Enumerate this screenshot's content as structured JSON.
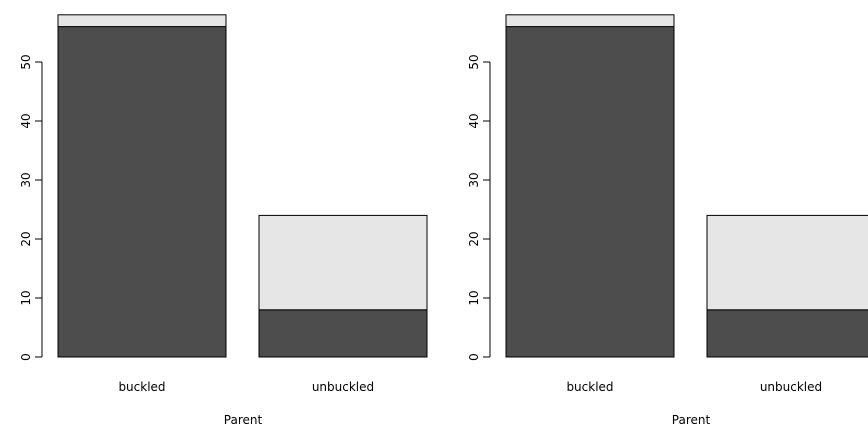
{
  "chart_data": [
    {
      "type": "bar",
      "stacked": true,
      "categories": [
        "buckled",
        "unbuckled"
      ],
      "series": [
        {
          "values": [
            56,
            8
          ],
          "color": "#4d4d4d"
        },
        {
          "values": [
            2,
            16
          ],
          "color": "#e6e6e6"
        }
      ],
      "xlabel": "Parent",
      "ylabel": "",
      "yticks": [
        0,
        10,
        20,
        30,
        40,
        50
      ],
      "ylim": [
        0,
        58
      ],
      "grid": false
    },
    {
      "type": "bar",
      "stacked": true,
      "categories": [
        "buckled",
        "unbuckled"
      ],
      "series": [
        {
          "values": [
            56,
            8
          ],
          "color": "#4d4d4d"
        },
        {
          "values": [
            2,
            16
          ],
          "color": "#e6e6e6"
        }
      ],
      "xlabel": "Parent",
      "ylabel": "",
      "yticks": [
        0,
        10,
        20,
        30,
        40,
        50
      ],
      "ylim": [
        0,
        58
      ],
      "grid": false
    }
  ]
}
